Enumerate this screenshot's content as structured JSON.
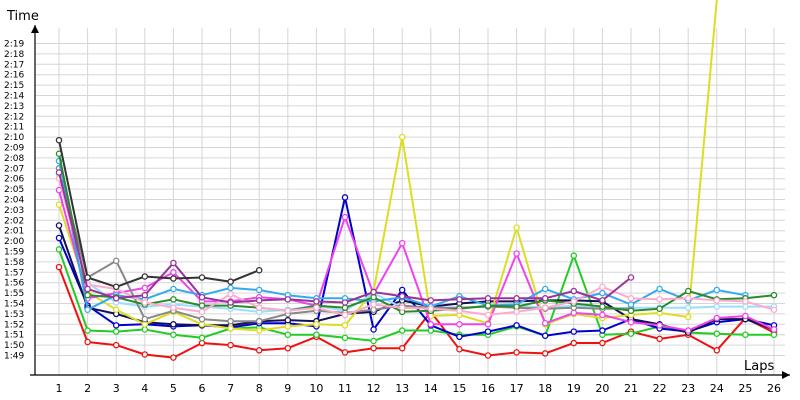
{
  "chart_data": {
    "type": "line",
    "ylabel": "Time",
    "xlabel": "Laps",
    "x": [
      1,
      2,
      3,
      4,
      5,
      6,
      7,
      8,
      9,
      10,
      11,
      12,
      13,
      14,
      15,
      16,
      17,
      18,
      19,
      20,
      21,
      22,
      23,
      24,
      25,
      26
    ],
    "y_tick_labels": [
      "1:49",
      "1:50",
      "1:51",
      "1:52",
      "1:53",
      "1:54",
      "1:55",
      "1:56",
      "1:57",
      "1:58",
      "1:59",
      "2:00",
      "2:01",
      "2:02",
      "2:03",
      "2:04",
      "2:05",
      "2:06",
      "2:07",
      "2:08",
      "2:09",
      "2:10",
      "2:11",
      "2:12",
      "2:13",
      "2:14",
      "2:15",
      "2:16",
      "2:17",
      "2:18",
      "2:19"
    ],
    "y_tick_values": [
      109,
      110,
      111,
      112,
      113,
      114,
      115,
      116,
      117,
      118,
      119,
      120,
      121,
      122,
      123,
      124,
      125,
      126,
      127,
      128,
      129,
      130,
      131,
      132,
      133,
      134,
      135,
      136,
      137,
      138,
      139
    ],
    "ylim": [
      108,
      139
    ],
    "grid": true,
    "series": [
      {
        "color": "#ee1111",
        "values": [
          117.5,
          110.3,
          110.0,
          109.1,
          108.8,
          110.2,
          110.0,
          109.5,
          109.7,
          110.8,
          109.3,
          109.7,
          109.7,
          113.2,
          109.6,
          109.0,
          109.3,
          109.2,
          110.2,
          110.2,
          111.3,
          110.6,
          111.0,
          109.5,
          112.6,
          111.2
        ]
      },
      {
        "color": "#22cc22",
        "values": [
          119.2,
          111.4,
          111.3,
          111.5,
          111.0,
          110.7,
          111.6,
          111.7,
          111.0,
          111.0,
          110.7,
          110.4,
          111.4,
          111.4,
          111.0,
          111.0,
          111.8,
          110.9,
          118.6,
          111.0,
          111.1,
          111.8,
          111.2,
          111.1,
          111.0,
          111.0
        ]
      },
      {
        "color": "#0000cc",
        "values": [
          120.3,
          113.8,
          111.9,
          112.0,
          111.8,
          111.9,
          111.7,
          112.1,
          112.1,
          111.8,
          124.2,
          111.5,
          115.3,
          111.9,
          110.8,
          111.3,
          111.9,
          110.9,
          111.3,
          111.4,
          112.5,
          111.6,
          111.3,
          112.2,
          112.5,
          111.9
        ]
      },
      {
        "color": "#111155",
        "values": [
          121.5,
          113.6,
          113.0,
          112.2,
          112.0,
          111.9,
          111.9,
          112.3,
          112.4,
          112.3,
          113.0,
          113.2,
          114.3,
          113.7,
          114.0,
          114.2,
          114.2,
          114.3,
          114.3,
          114.2,
          112.5,
          112.0,
          111.2,
          112.5,
          112.5,
          111.5
        ]
      },
      {
        "color": "#dddd22",
        "values": [
          123.5,
          115.1,
          113.4,
          112.0,
          113.2,
          112.0,
          111.6,
          111.4,
          111.8,
          112.0,
          111.9,
          115.2,
          130.0,
          112.8,
          112.9,
          112.1,
          121.3,
          112.0,
          113.0,
          112.6,
          112.9,
          113.1,
          112.7,
          160.0,
          null,
          null
        ]
      },
      {
        "color": "#ee44ee",
        "values": [
          124.9,
          114.5,
          115.0,
          115.5,
          117.0,
          114.2,
          114.2,
          114.6,
          114.4,
          113.8,
          122.3,
          114.9,
          119.8,
          112.0,
          112.0,
          112.0,
          118.8,
          112.1,
          113.1,
          112.9,
          112.2,
          111.9,
          111.4,
          112.6,
          112.8,
          111.5
        ]
      },
      {
        "color": "#99ddff",
        "values": [
          126.4,
          116.0,
          114.1,
          113.7,
          113.9,
          113.7,
          113.5,
          113.2,
          113.4,
          113.8,
          113.3,
          115.0,
          113.6,
          113.6,
          113.6,
          113.7,
          113.8,
          113.6,
          113.8,
          113.5,
          113.6,
          113.6,
          113.6,
          113.7,
          113.7,
          113.7
        ]
      },
      {
        "color": "#888888",
        "values": [
          127.0,
          116.5,
          118.1,
          112.5,
          113.3,
          112.5,
          112.3,
          112.3,
          113.0,
          113.3,
          113.1,
          113.4,
          113.8,
          113.6,
          113.6,
          113.7,
          113.6,
          113.5,
          113.6,
          113.5,
          113.5,
          null,
          null,
          null,
          null,
          null
        ]
      },
      {
        "color": "#33aaee",
        "values": [
          127.7,
          113.4,
          114.8,
          114.4,
          115.4,
          114.8,
          115.5,
          115.3,
          114.8,
          114.5,
          114.5,
          114.2,
          114.6,
          113.7,
          114.7,
          113.8,
          113.9,
          115.4,
          114.4,
          115.0,
          113.9,
          115.4,
          114.3,
          115.3,
          114.8,
          null
        ]
      },
      {
        "color": "#2a8a2a",
        "values": [
          128.4,
          114.8,
          114.6,
          113.9,
          114.4,
          113.8,
          113.8,
          113.6,
          113.3,
          113.8,
          113.6,
          114.6,
          113.2,
          113.3,
          113.5,
          113.8,
          113.7,
          114.3,
          114.0,
          113.7,
          113.3,
          113.5,
          115.2,
          114.4,
          114.5,
          114.8
        ]
      },
      {
        "color": "#ffaacc",
        "values": [
          126.0,
          115.8,
          115.4,
          114.1,
          113.6,
          113.2,
          114.9,
          113.6,
          113.3,
          113.6,
          112.9,
          113.9,
          113.6,
          113.5,
          113.3,
          112.9,
          113.2,
          113.6,
          114.2,
          115.6,
          114.5,
          114.4,
          114.5,
          114.3,
          114.2,
          113.4
        ]
      },
      {
        "color": "#993399",
        "values": [
          126.6,
          115.4,
          114.5,
          114.8,
          117.9,
          114.6,
          114.1,
          114.3,
          114.4,
          114.2,
          114.1,
          115.1,
          114.7,
          114.3,
          114.4,
          114.5,
          114.5,
          114.5,
          115.2,
          114.3,
          116.5,
          null,
          null,
          null,
          null,
          null
        ]
      },
      {
        "color": "#333333",
        "values": [
          129.7,
          116.5,
          115.6,
          116.6,
          116.4,
          116.5,
          116.1,
          117.2,
          null,
          null,
          null,
          null,
          null,
          null,
          null,
          null,
          null,
          null,
          null,
          null,
          null,
          null,
          null,
          null,
          null,
          null
        ]
      }
    ]
  }
}
